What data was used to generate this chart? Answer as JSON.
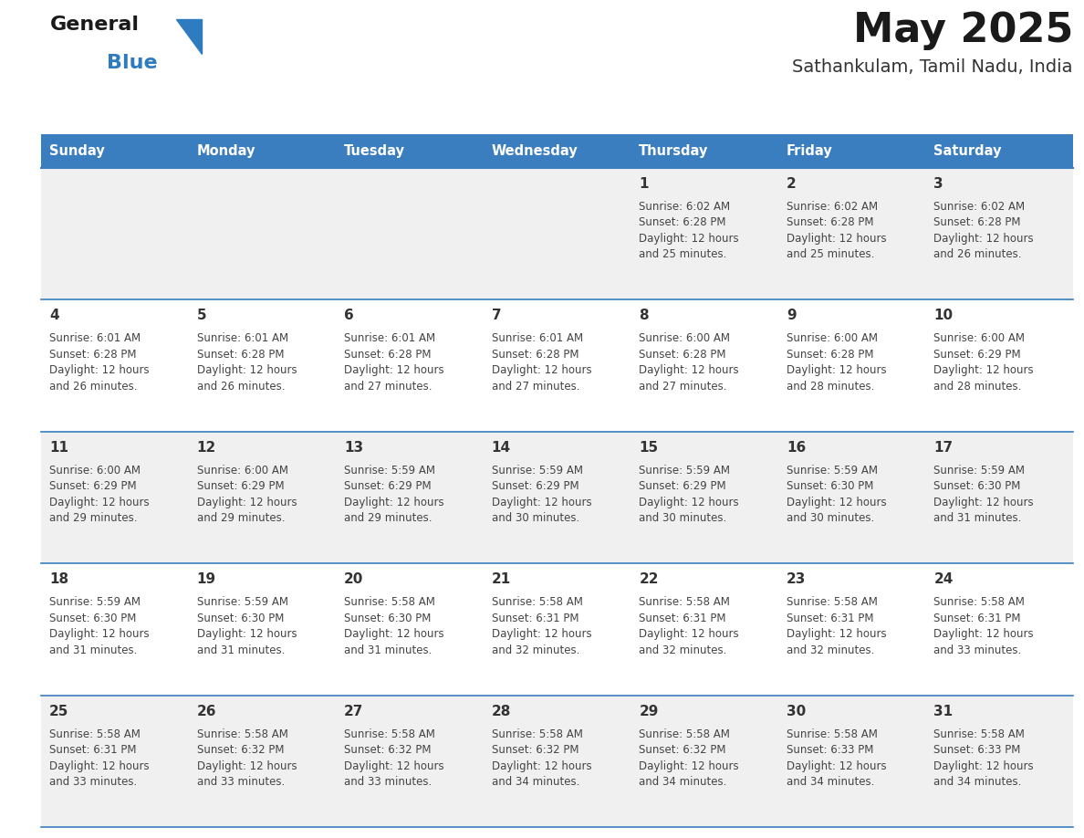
{
  "title": "May 2025",
  "subtitle": "Sathankulam, Tamil Nadu, India",
  "header_bg_color": "#3a7ebf",
  "header_text_color": "#ffffff",
  "row_bg_even": "#f0f0f0",
  "row_bg_odd": "#ffffff",
  "day_number_color": "#333333",
  "cell_text_color": "#444444",
  "border_color": "#3a7ebf",
  "days_of_week": [
    "Sunday",
    "Monday",
    "Tuesday",
    "Wednesday",
    "Thursday",
    "Friday",
    "Saturday"
  ],
  "calendar_data": [
    [
      {
        "day": "",
        "sunrise": "",
        "sunset": "",
        "daylight": ""
      },
      {
        "day": "",
        "sunrise": "",
        "sunset": "",
        "daylight": ""
      },
      {
        "day": "",
        "sunrise": "",
        "sunset": "",
        "daylight": ""
      },
      {
        "day": "",
        "sunrise": "",
        "sunset": "",
        "daylight": ""
      },
      {
        "day": "1",
        "sunrise": "6:02 AM",
        "sunset": "6:28 PM",
        "daylight": "12 hours and 25 minutes."
      },
      {
        "day": "2",
        "sunrise": "6:02 AM",
        "sunset": "6:28 PM",
        "daylight": "12 hours and 25 minutes."
      },
      {
        "day": "3",
        "sunrise": "6:02 AM",
        "sunset": "6:28 PM",
        "daylight": "12 hours and 26 minutes."
      }
    ],
    [
      {
        "day": "4",
        "sunrise": "6:01 AM",
        "sunset": "6:28 PM",
        "daylight": "12 hours and 26 minutes."
      },
      {
        "day": "5",
        "sunrise": "6:01 AM",
        "sunset": "6:28 PM",
        "daylight": "12 hours and 26 minutes."
      },
      {
        "day": "6",
        "sunrise": "6:01 AM",
        "sunset": "6:28 PM",
        "daylight": "12 hours and 27 minutes."
      },
      {
        "day": "7",
        "sunrise": "6:01 AM",
        "sunset": "6:28 PM",
        "daylight": "12 hours and 27 minutes."
      },
      {
        "day": "8",
        "sunrise": "6:00 AM",
        "sunset": "6:28 PM",
        "daylight": "12 hours and 27 minutes."
      },
      {
        "day": "9",
        "sunrise": "6:00 AM",
        "sunset": "6:28 PM",
        "daylight": "12 hours and 28 minutes."
      },
      {
        "day": "10",
        "sunrise": "6:00 AM",
        "sunset": "6:29 PM",
        "daylight": "12 hours and 28 minutes."
      }
    ],
    [
      {
        "day": "11",
        "sunrise": "6:00 AM",
        "sunset": "6:29 PM",
        "daylight": "12 hours and 29 minutes."
      },
      {
        "day": "12",
        "sunrise": "6:00 AM",
        "sunset": "6:29 PM",
        "daylight": "12 hours and 29 minutes."
      },
      {
        "day": "13",
        "sunrise": "5:59 AM",
        "sunset": "6:29 PM",
        "daylight": "12 hours and 29 minutes."
      },
      {
        "day": "14",
        "sunrise": "5:59 AM",
        "sunset": "6:29 PM",
        "daylight": "12 hours and 30 minutes."
      },
      {
        "day": "15",
        "sunrise": "5:59 AM",
        "sunset": "6:29 PM",
        "daylight": "12 hours and 30 minutes."
      },
      {
        "day": "16",
        "sunrise": "5:59 AM",
        "sunset": "6:30 PM",
        "daylight": "12 hours and 30 minutes."
      },
      {
        "day": "17",
        "sunrise": "5:59 AM",
        "sunset": "6:30 PM",
        "daylight": "12 hours and 31 minutes."
      }
    ],
    [
      {
        "day": "18",
        "sunrise": "5:59 AM",
        "sunset": "6:30 PM",
        "daylight": "12 hours and 31 minutes."
      },
      {
        "day": "19",
        "sunrise": "5:59 AM",
        "sunset": "6:30 PM",
        "daylight": "12 hours and 31 minutes."
      },
      {
        "day": "20",
        "sunrise": "5:58 AM",
        "sunset": "6:30 PM",
        "daylight": "12 hours and 31 minutes."
      },
      {
        "day": "21",
        "sunrise": "5:58 AM",
        "sunset": "6:31 PM",
        "daylight": "12 hours and 32 minutes."
      },
      {
        "day": "22",
        "sunrise": "5:58 AM",
        "sunset": "6:31 PM",
        "daylight": "12 hours and 32 minutes."
      },
      {
        "day": "23",
        "sunrise": "5:58 AM",
        "sunset": "6:31 PM",
        "daylight": "12 hours and 32 minutes."
      },
      {
        "day": "24",
        "sunrise": "5:58 AM",
        "sunset": "6:31 PM",
        "daylight": "12 hours and 33 minutes."
      }
    ],
    [
      {
        "day": "25",
        "sunrise": "5:58 AM",
        "sunset": "6:31 PM",
        "daylight": "12 hours and 33 minutes."
      },
      {
        "day": "26",
        "sunrise": "5:58 AM",
        "sunset": "6:32 PM",
        "daylight": "12 hours and 33 minutes."
      },
      {
        "day": "27",
        "sunrise": "5:58 AM",
        "sunset": "6:32 PM",
        "daylight": "12 hours and 33 minutes."
      },
      {
        "day": "28",
        "sunrise": "5:58 AM",
        "sunset": "6:32 PM",
        "daylight": "12 hours and 34 minutes."
      },
      {
        "day": "29",
        "sunrise": "5:58 AM",
        "sunset": "6:32 PM",
        "daylight": "12 hours and 34 minutes."
      },
      {
        "day": "30",
        "sunrise": "5:58 AM",
        "sunset": "6:33 PM",
        "daylight": "12 hours and 34 minutes."
      },
      {
        "day": "31",
        "sunrise": "5:58 AM",
        "sunset": "6:33 PM",
        "daylight": "12 hours and 34 minutes."
      }
    ]
  ]
}
